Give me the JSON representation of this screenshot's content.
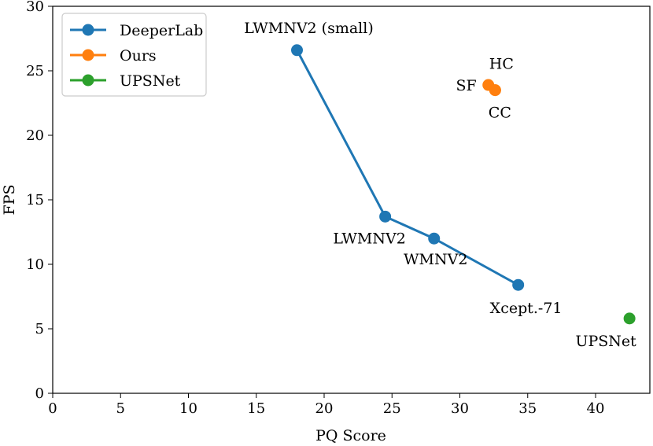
{
  "chart_data": {
    "type": "scatter",
    "title": "",
    "xlabel": "PQ Score",
    "ylabel": "FPS",
    "xlim": [
      0,
      44
    ],
    "ylim": [
      0,
      30
    ],
    "xticks": [
      0,
      5,
      10,
      15,
      20,
      25,
      30,
      35,
      40
    ],
    "yticks": [
      0,
      5,
      10,
      15,
      20,
      25,
      30
    ],
    "grid": false,
    "legend_position": "top-left",
    "series": [
      {
        "name": "DeeperLab",
        "color": "#1f77b4",
        "connected": true,
        "points": [
          {
            "x": 18.0,
            "y": 26.6,
            "label": "LWMNV2 (small)"
          },
          {
            "x": 24.5,
            "y": 13.7,
            "label": "LWMNV2"
          },
          {
            "x": 28.1,
            "y": 12.0,
            "label": "WMNV2"
          },
          {
            "x": 34.3,
            "y": 8.4,
            "label": "Xcept.-71"
          }
        ]
      },
      {
        "name": "Ours",
        "color": "#ff7f0e",
        "connected": false,
        "points": [
          {
            "x": 32.1,
            "y": 23.9,
            "label": "SF"
          },
          {
            "x": 32.6,
            "y": 23.5,
            "label": "HC"
          },
          {
            "x": 32.6,
            "y": 23.5,
            "label": "CC"
          }
        ]
      },
      {
        "name": "UPSNet",
        "color": "#2ca02c",
        "connected": false,
        "points": [
          {
            "x": 42.5,
            "y": 5.8,
            "label": "UPSNet"
          }
        ]
      }
    ]
  }
}
